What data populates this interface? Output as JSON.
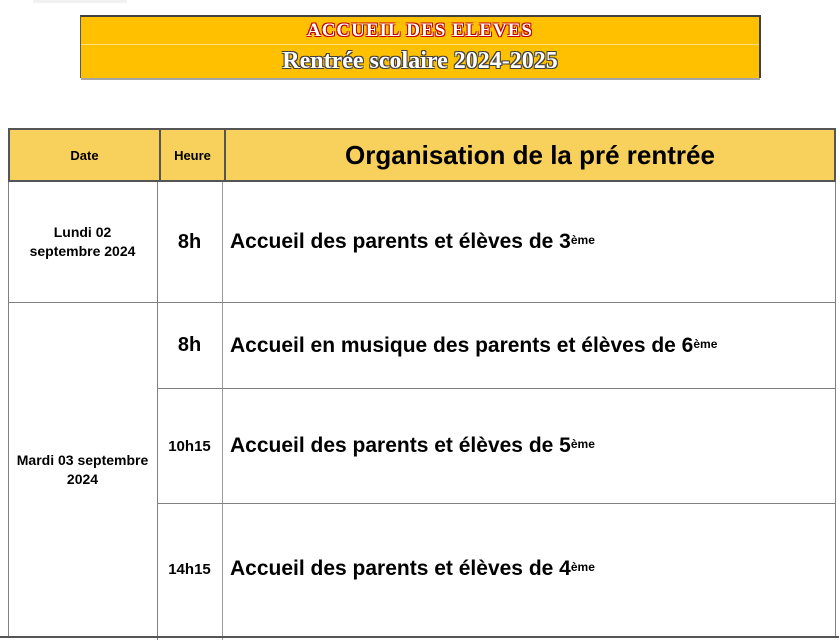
{
  "banner": {
    "line1": "ACCUEIL DES ELEVES",
    "line2": "Rentrée scolaire 2024-2025",
    "background_color": "#FFC000",
    "line1_outline_color": "#C00000",
    "line2_outline_color": "#3F3F3F",
    "text_fill_color": "#FFFFFF"
  },
  "table": {
    "header": {
      "date": "Date",
      "heure": "Heure",
      "organisation": "Organisation de la pré rentrée",
      "background_color": "#F8D05C"
    },
    "rows": [
      {
        "date_line1": "Lundi 02",
        "date_line2": "septembre 2024",
        "entries": [
          {
            "heure": "8h",
            "text": "Accueil des parents et élèves de 3",
            "sup": "ème"
          }
        ]
      },
      {
        "date_line1": "Mardi 03 septembre",
        "date_line2": "2024",
        "entries": [
          {
            "heure": "8h",
            "text": "Accueil en musique des parents et élèves de 6",
            "sup": "ème"
          },
          {
            "heure": "10h15",
            "text": "Accueil des parents et élèves de 5",
            "sup": "ème"
          },
          {
            "heure": "14h15",
            "text": "Accueil des parents et élèves de 4",
            "sup": "ème"
          }
        ]
      }
    ],
    "border_dark_color": "#555555",
    "border_gray_color": "#808080"
  }
}
